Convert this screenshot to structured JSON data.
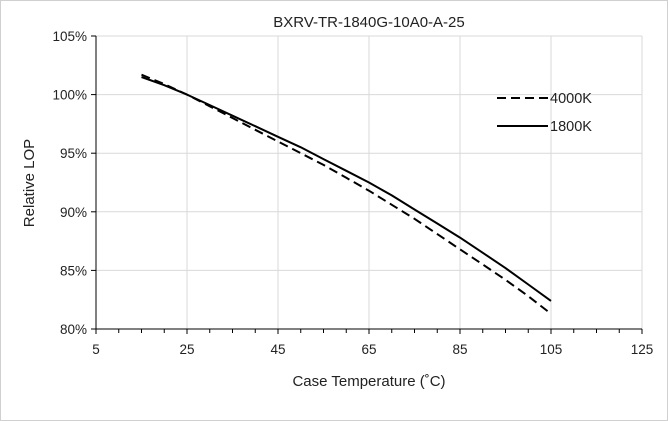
{
  "chart_data": {
    "type": "line",
    "title": "BXRV-TR-1840G-10A0-A-25",
    "xlabel": "Case Temperature (˚C)",
    "ylabel": "Relative LOP",
    "xlim": [
      5,
      125
    ],
    "ylim": [
      0.8,
      1.05
    ],
    "x_ticks": [
      "5",
      "25",
      "45",
      "65",
      "85",
      "105",
      "125"
    ],
    "y_ticks": [
      "80%",
      "85%",
      "90%",
      "95%",
      "100%",
      "105%"
    ],
    "grid": true,
    "legend_position": "top-right",
    "series": [
      {
        "name": "4000K",
        "style": "dashed",
        "color": "#000000",
        "x": [
          15,
          20,
          25,
          30,
          35,
          40,
          45,
          50,
          55,
          60,
          65,
          70,
          75,
          80,
          85,
          90,
          95,
          100,
          105
        ],
        "y": [
          1.017,
          1.009,
          1.0,
          0.99,
          0.98,
          0.97,
          0.96,
          0.95,
          0.94,
          0.929,
          0.918,
          0.906,
          0.894,
          0.881,
          0.868,
          0.855,
          0.842,
          0.828,
          0.813
        ]
      },
      {
        "name": "1800K",
        "style": "solid",
        "color": "#000000",
        "x": [
          15,
          20,
          25,
          30,
          35,
          40,
          45,
          50,
          55,
          60,
          65,
          70,
          75,
          80,
          85,
          90,
          95,
          100,
          105
        ],
        "y": [
          1.015,
          1.008,
          1.0,
          0.991,
          0.982,
          0.973,
          0.964,
          0.955,
          0.945,
          0.935,
          0.925,
          0.914,
          0.902,
          0.89,
          0.878,
          0.865,
          0.852,
          0.838,
          0.824
        ]
      }
    ]
  }
}
